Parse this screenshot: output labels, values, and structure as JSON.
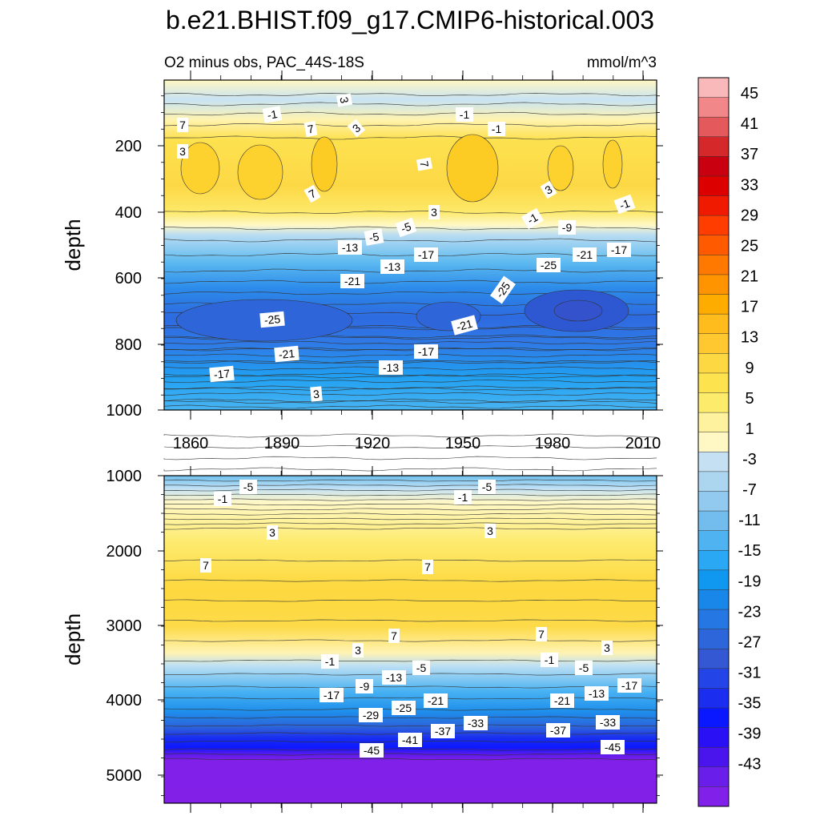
{
  "chart_data": {
    "type": "heatmap",
    "title": "b.e21.BHIST.f09_g17.CMIP6-historical.003",
    "subtitle_left": "O2 minus obs, PAC_44S-18S",
    "subtitle_right": "mmol/m^3",
    "colorbar": {
      "tick_labels": [
        "45",
        "41",
        "37",
        "33",
        "29",
        "25",
        "21",
        "17",
        "13",
        "9",
        "5",
        "1",
        "-3",
        "-7",
        "-11",
        "-15",
        "-19",
        "-23",
        "-27",
        "-31",
        "-35",
        "-39",
        "-43"
      ],
      "colors": [
        "#f9b8b9",
        "#f28789",
        "#e45a5c",
        "#d4282b",
        "#c80010",
        "#dc0000",
        "#f01a00",
        "#ff3d00",
        "#ff5a00",
        "#ff7800",
        "#ff9400",
        "#ffac00",
        "#ffbc1c",
        "#ffc830",
        "#fed842",
        "#fde34e",
        "#fdeb6c",
        "#fef29e",
        "#fff8c4",
        "#c5e0f2",
        "#acd5f0",
        "#91c9ef",
        "#72bdee",
        "#4fb3f2",
        "#2aa8f4",
        "#1098f0",
        "#1987e9",
        "#2577e3",
        "#2d66da",
        "#3458d4",
        "#2345e8",
        "#1b2ef0",
        "#0a18ff",
        "#2a10f4",
        "#4a14ec",
        "#6a1eea",
        "#8120e8"
      ]
    },
    "panels": [
      {
        "name": "top",
        "ylabel": "depth",
        "y_ticks": [
          "200",
          "400",
          "600",
          "800",
          "1000"
        ],
        "x_ticks": [
          "1860",
          "1890",
          "1920",
          "1950",
          "1980",
          "2010"
        ],
        "ylim": [
          0,
          1000
        ],
        "xlim": [
          1850,
          2014
        ],
        "contour_labels": [
          "-1",
          "3",
          "7",
          "-1",
          "7",
          "3",
          "-1",
          "3",
          "7",
          "7",
          "3",
          "-1",
          "3",
          "-5",
          "-1",
          "-9",
          "-5",
          "-13",
          "-17",
          "-21",
          "-17",
          "-13",
          "-21",
          "-25",
          "-25",
          "-25",
          "-21",
          "-21",
          "-17",
          "-17",
          "-13",
          "3",
          "-5",
          "-13"
        ]
      },
      {
        "name": "bottom",
        "ylabel": "depth",
        "y_ticks": [
          "1000",
          "2000",
          "3000",
          "4000",
          "5000"
        ],
        "ylim": [
          1000,
          5400
        ],
        "xlim": [
          1850,
          2014
        ],
        "contour_labels": [
          "-5",
          "-1",
          "-1",
          "-5",
          "3",
          "3",
          "7",
          "7",
          "7",
          "7",
          "3",
          "3",
          "-1",
          "-1",
          "-5",
          "-5",
          "-13",
          "-9",
          "-17",
          "-17",
          "-13",
          "-29",
          "-25",
          "-21",
          "-21",
          "-33",
          "-37",
          "-37",
          "-33",
          "-41",
          "-45",
          "-45"
        ]
      }
    ]
  }
}
